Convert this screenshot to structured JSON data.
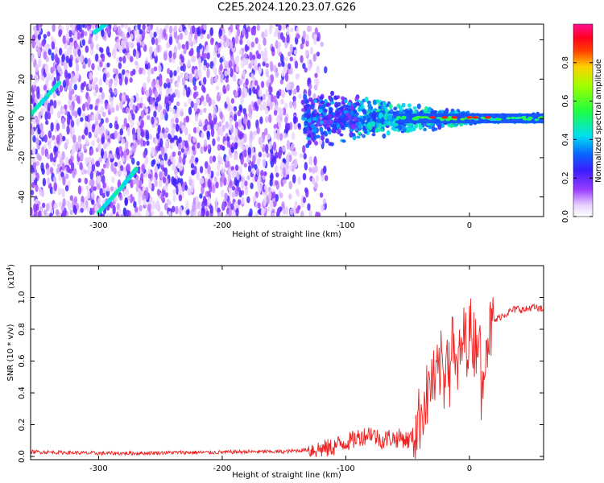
{
  "title": "C2E5.2024.120.23.07.G26",
  "colors": {
    "snr_line": "#ee2020",
    "axis": "#000000"
  },
  "chart_data": [
    {
      "type": "heatmap",
      "xlabel": "Height of straight line (km)",
      "ylabel": "Frequency (Hz)",
      "xlim": [
        -355,
        60
      ],
      "ylim": [
        -50,
        48
      ],
      "x_ticks": [
        -300,
        -200,
        -100,
        0
      ],
      "y_ticks": [
        -40,
        -20,
        0,
        20,
        40
      ],
      "colorbar": {
        "label": "Normalized spectral amplitude",
        "range": [
          0,
          1
        ],
        "ticks": [
          0.0,
          0.2,
          0.4,
          0.6,
          0.8
        ],
        "tick_labels": [
          "0.0",
          "0.2",
          "0.4",
          "0.6",
          "0.8"
        ],
        "colormap": "rainbow (white-purple-blue-cyan-green-yellow-red-magenta)"
      },
      "features": [
        {
          "name": "",
          "x": [
            -355,
            -332
          ],
          "y": [
            2,
            18
          ]
        },
        {
          "name": "",
          "x": [
            -303,
            -290
          ],
          "y": [
            44,
            50
          ]
        },
        {
          "name": "",
          "x": [
            -300,
            -280
          ],
          "y": [
            -48,
            -34
          ]
        },
        {
          "name": "",
          "x": [
            -280,
            -270
          ],
          "y": [
            -34,
            -26
          ]
        }
      ]
    },
    {
      "type": "line",
      "xlabel": "Height of straight line (km)",
      "ylabel": "SNR (10 * v/v)",
      "y_multiplier": "(x10^4)",
      "xlim": [
        -355,
        60
      ],
      "ylim": [
        -0.02,
        1.2
      ],
      "x_ticks": [
        -300,
        -200,
        -100,
        0
      ],
      "y_ticks": [
        0.0,
        0.2,
        0.4,
        0.6,
        0.8,
        1.0
      ],
      "y_tick_labels": [
        "0.0",
        "0.2",
        "0.4",
        "0.6",
        "0.8",
        "1.0"
      ],
      "series": [
        {
          "x": [
            -355,
            -330,
            -300,
            -270,
            -240,
            -210,
            -180,
            -150,
            -135,
            -125,
            -115,
            -110,
            -105,
            -100,
            -95,
            -90,
            -85,
            -80,
            -75,
            -70,
            -65,
            -60,
            -55,
            -50,
            -45,
            -42,
            -40,
            -38,
            -36,
            -34,
            -32,
            -30,
            -28,
            -26,
            -24,
            -22,
            -20,
            -18,
            -16,
            -14,
            -12,
            -10,
            -8,
            -6,
            -4,
            -2,
            0,
            2,
            4,
            6,
            8,
            10,
            12,
            14,
            16,
            18,
            20,
            25,
            30,
            35,
            40,
            45,
            50,
            55,
            60
          ],
          "y": [
            0.03,
            0.025,
            0.02,
            0.02,
            0.025,
            0.025,
            0.03,
            0.03,
            0.04,
            0.045,
            0.05,
            0.06,
            0.08,
            0.09,
            0.1,
            0.12,
            0.13,
            0.15,
            0.12,
            0.1,
            0.12,
            0.11,
            0.12,
            0.1,
            0.13,
            0.2,
            0.25,
            0.32,
            0.35,
            0.38,
            0.45,
            0.5,
            0.42,
            0.5,
            0.55,
            0.6,
            0.45,
            0.85,
            0.4,
            0.9,
            0.5,
            0.55,
            0.6,
            0.7,
            0.75,
            0.72,
            0.78,
            0.8,
            0.7,
            0.75,
            0.82,
            0.3,
            0.7,
            0.75,
            0.78,
            0.8,
            0.85,
            0.88,
            0.9,
            0.92,
            0.93,
            0.92,
            0.94,
            0.93,
            0.92
          ]
        }
      ]
    }
  ]
}
